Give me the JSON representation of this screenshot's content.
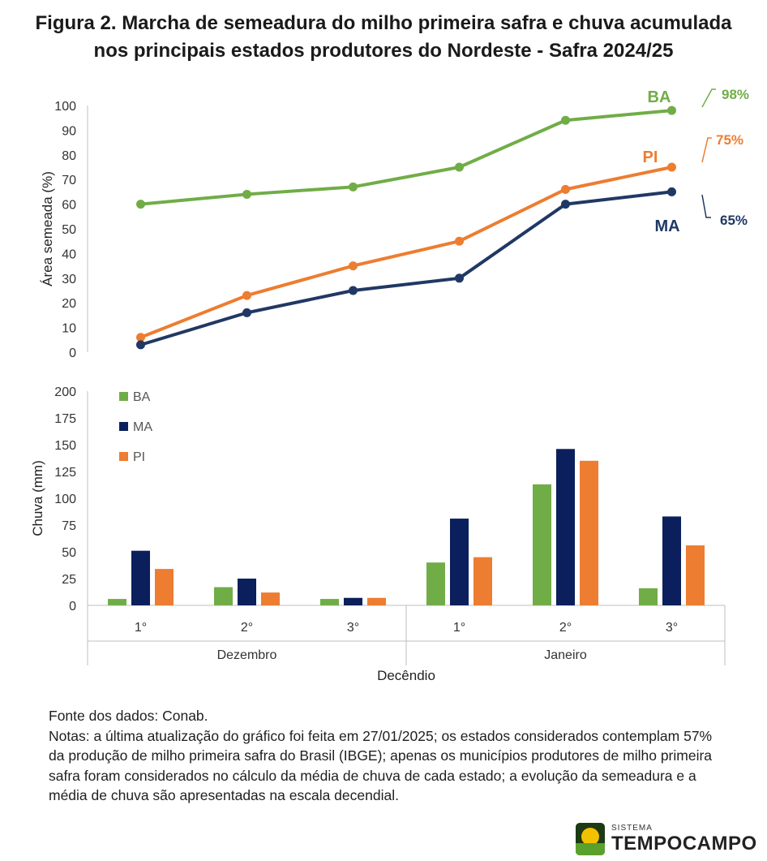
{
  "title_line1": "Figura 2. Marcha de semeadura do milho primeira safra e chuva acumulada",
  "title_line2": "nos principais estados produtores do Nordeste - Safra 2024/25",
  "chart_data": [
    {
      "type": "line",
      "ylabel": "Área semeada (%)",
      "ylim": [
        0,
        100
      ],
      "yticks": [
        0,
        10,
        20,
        30,
        40,
        50,
        60,
        70,
        80,
        90,
        100
      ],
      "x_count": 6,
      "series": [
        {
          "name": "BA",
          "color": "#70ad47",
          "values": [
            60,
            64,
            67,
            75,
            94,
            98
          ],
          "end_label": "98%"
        },
        {
          "name": "PI",
          "color": "#ed7d31",
          "values": [
            6,
            23,
            35,
            45,
            66,
            75
          ],
          "end_label": "75%"
        },
        {
          "name": "MA",
          "color": "#203864",
          "values": [
            3,
            16,
            25,
            30,
            60,
            65
          ],
          "end_label": "65%"
        }
      ]
    },
    {
      "type": "bar",
      "ylabel": "Chuva (mm)",
      "xlabel": "Decêndio",
      "ylim": [
        0,
        200
      ],
      "yticks": [
        0,
        25,
        50,
        75,
        100,
        125,
        150,
        175,
        200
      ],
      "categories": [
        "1°",
        "2°",
        "3°",
        "1°",
        "2°",
        "3°"
      ],
      "groups": [
        "Dezembro",
        "Janeiro"
      ],
      "series": [
        {
          "name": "BA",
          "color": "#70ad47",
          "values": [
            6,
            17,
            6,
            40,
            113,
            16
          ]
        },
        {
          "name": "MA",
          "color": "#0b1f5c",
          "values": [
            51,
            25,
            7,
            81,
            146,
            83
          ]
        },
        {
          "name": "PI",
          "color": "#ed7d31",
          "values": [
            34,
            12,
            7,
            45,
            135,
            56
          ]
        }
      ]
    }
  ],
  "notes": {
    "source": "Fonte dos dados: Conab.",
    "text": "Notas: a última atualização do gráfico foi feita em 27/01/2025; os estados considerados contemplam 57% da produção de milho primeira safra do Brasil (IBGE); apenas os municípios produtores de milho primeira safra foram considerados no cálculo da média de chuva de cada estado; a evolução da semeadura e a média de chuva são apresentadas na escala decendial."
  },
  "logo": {
    "small": "SISTEMA",
    "big": "TEMPOCAMPO"
  }
}
